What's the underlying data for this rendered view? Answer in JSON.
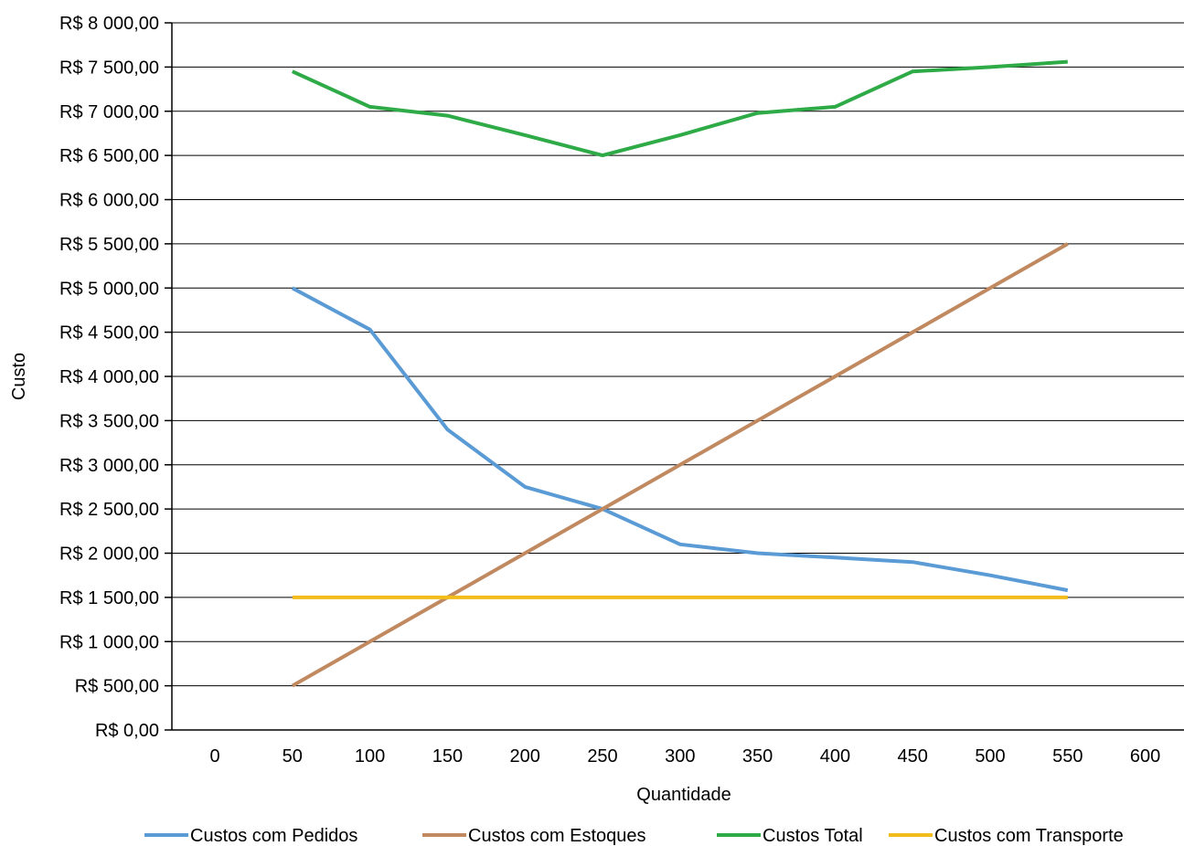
{
  "chart_data": {
    "type": "line",
    "xlabel": "Quantidade",
    "ylabel": "Custo",
    "xlim": [
      0,
      600
    ],
    "ylim": [
      0,
      8000
    ],
    "x_ticks": [
      "0",
      "50",
      "100",
      "150",
      "200",
      "250",
      "300",
      "350",
      "400",
      "450",
      "500",
      "550",
      "600"
    ],
    "y_ticks": [
      "R$ 0,00",
      "R$ 500,00",
      "R$ 1 000,00",
      "R$ 1 500,00",
      "R$ 2 000,00",
      "R$ 2 500,00",
      "R$ 3 000,00",
      "R$ 3 500,00",
      "R$ 4 000,00",
      "R$ 4 500,00",
      "R$ 5 000,00",
      "R$ 5 500,00",
      "R$ 6 000,00",
      "R$ 6 500,00",
      "R$ 7 000,00",
      "R$ 7 500,00",
      "R$ 8 000,00"
    ],
    "grid": "horizontal",
    "legend_position": "bottom",
    "x": [
      50,
      100,
      150,
      200,
      250,
      300,
      350,
      400,
      450,
      500,
      550
    ],
    "series": [
      {
        "name": "Custos com Pedidos",
        "color": "#5b9bd5",
        "values": [
          5000,
          4530,
          3400,
          2750,
          2500,
          2100,
          2000,
          1950,
          1900,
          1750,
          1580
        ]
      },
      {
        "name": "Custos com Estoques",
        "color": "#c0895f",
        "values": [
          500,
          1000,
          1500,
          2000,
          2500,
          3000,
          3500,
          4000,
          4500,
          5000,
          5500
        ]
      },
      {
        "name": "Custos Total",
        "color": "#2eaa47",
        "values": [
          7450,
          7050,
          6950,
          6730,
          6500,
          6730,
          6980,
          7050,
          7450,
          7500,
          7560
        ]
      },
      {
        "name": "Custos com Transporte",
        "color": "#f2bd1a",
        "values": [
          1500,
          1500,
          1500,
          1500,
          1500,
          1500,
          1500,
          1500,
          1500,
          1500,
          1500
        ]
      }
    ]
  }
}
